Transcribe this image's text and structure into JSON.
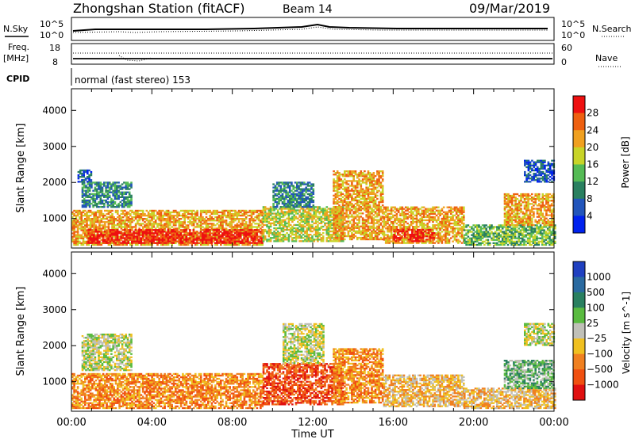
{
  "header": {
    "title": "Zhongshan Station (fitACF)",
    "beam": "Beam 14",
    "date": "09/Mar/2019"
  },
  "params_panel": {
    "nsky_label": "N.Sky",
    "nsearch_label": "N.Search",
    "noise_tick_top": "10^5",
    "noise_tick_bottom": "10^0",
    "freq_label": "Freq.",
    "freq_unit": "[MHz]",
    "freq_ticks": [
      "18",
      "8"
    ],
    "nave_label": "Nave",
    "nave_ticks": [
      "60",
      "0"
    ],
    "cpid_label": "CPID",
    "cpid_text": "normal (fast stereo) 153"
  },
  "chart_data": [
    {
      "type": "heatmap",
      "name": "power-panel",
      "ylabel": "Slant Range [km]",
      "xlabel": "",
      "yticks": [
        1000,
        2000,
        3000,
        4000
      ],
      "ylim": [
        180,
        4600
      ],
      "xlim": [
        0,
        24
      ],
      "colorbar": {
        "label": "Power [dB]",
        "ticks": [
          "4",
          "8",
          "12",
          "16",
          "20",
          "24",
          "28"
        ],
        "colors": [
          "#0022ee",
          "#2255bb",
          "#2a8060",
          "#55bb55",
          "#c8d428",
          "#f0a020",
          "#ee6010",
          "#ee1010"
        ]
      },
      "echo_regions": [
        {
          "t0": 0.0,
          "t1": 9.5,
          "r0": 250,
          "r1": 1200,
          "level": 5
        },
        {
          "t0": 0.8,
          "t1": 9.5,
          "r0": 300,
          "r1": 700,
          "level": 7
        },
        {
          "t0": 0.5,
          "t1": 3.0,
          "r0": 1300,
          "r1": 2000,
          "level": 2
        },
        {
          "t0": 0.3,
          "t1": 1.0,
          "r0": 2000,
          "r1": 2350,
          "level": 1
        },
        {
          "t0": 9.5,
          "t1": 13.5,
          "r0": 350,
          "r1": 1300,
          "level": 4
        },
        {
          "t0": 10.0,
          "t1": 12.0,
          "r0": 1300,
          "r1": 2000,
          "level": 2
        },
        {
          "t0": 13.0,
          "t1": 15.5,
          "r0": 400,
          "r1": 2300,
          "level": 5
        },
        {
          "t0": 15.5,
          "t1": 19.5,
          "r0": 300,
          "r1": 1300,
          "level": 5
        },
        {
          "t0": 16.0,
          "t1": 18.0,
          "r0": 350,
          "r1": 700,
          "level": 7
        },
        {
          "t0": 19.5,
          "t1": 24.0,
          "r0": 250,
          "r1": 800,
          "level": 3
        },
        {
          "t0": 21.5,
          "t1": 24.0,
          "r0": 800,
          "r1": 1700,
          "level": 5
        },
        {
          "t0": 22.5,
          "t1": 24.0,
          "r0": 2000,
          "r1": 2600,
          "level": 1
        }
      ]
    },
    {
      "type": "heatmap",
      "name": "velocity-panel",
      "ylabel": "Slant Range [km]",
      "xlabel": "Time UT",
      "xticks": [
        "00:00",
        "04:00",
        "08:00",
        "12:00",
        "16:00",
        "20:00",
        "00:00"
      ],
      "yticks": [
        1000,
        2000,
        3000,
        4000
      ],
      "ylim": [
        180,
        4600
      ],
      "xlim": [
        0,
        24
      ],
      "colorbar": {
        "label": "Velocity [m s^-1]",
        "ticks": [
          "1000",
          "500",
          "100",
          "25",
          "−25",
          "−100",
          "−500",
          "−1000"
        ],
        "colors": [
          "#2040c0",
          "#2a6aa0",
          "#2a8060",
          "#5abb40",
          "#c0c0b8",
          "#f0c020",
          "#f08020",
          "#f05010",
          "#e01010"
        ]
      },
      "echo_regions": [
        {
          "t0": 0.0,
          "t1": 9.5,
          "r0": 250,
          "r1": 1200,
          "level": 6
        },
        {
          "t0": 0.5,
          "t1": 3.0,
          "r0": 1300,
          "r1": 2300,
          "level": 4
        },
        {
          "t0": 9.5,
          "t1": 13.5,
          "r0": 350,
          "r1": 1500,
          "level": 7
        },
        {
          "t0": 10.5,
          "t1": 12.5,
          "r0": 1500,
          "r1": 2600,
          "level": 4
        },
        {
          "t0": 13.0,
          "t1": 15.5,
          "r0": 400,
          "r1": 1900,
          "level": 6
        },
        {
          "t0": 15.5,
          "t1": 19.5,
          "r0": 300,
          "r1": 1200,
          "level": 5
        },
        {
          "t0": 19.5,
          "t1": 24.0,
          "r0": 250,
          "r1": 800,
          "level": 5
        },
        {
          "t0": 21.5,
          "t1": 24.0,
          "r0": 800,
          "r1": 1600,
          "level": 3
        },
        {
          "t0": 22.5,
          "t1": 24.0,
          "r0": 2000,
          "r1": 2600,
          "level": 4
        }
      ]
    }
  ]
}
